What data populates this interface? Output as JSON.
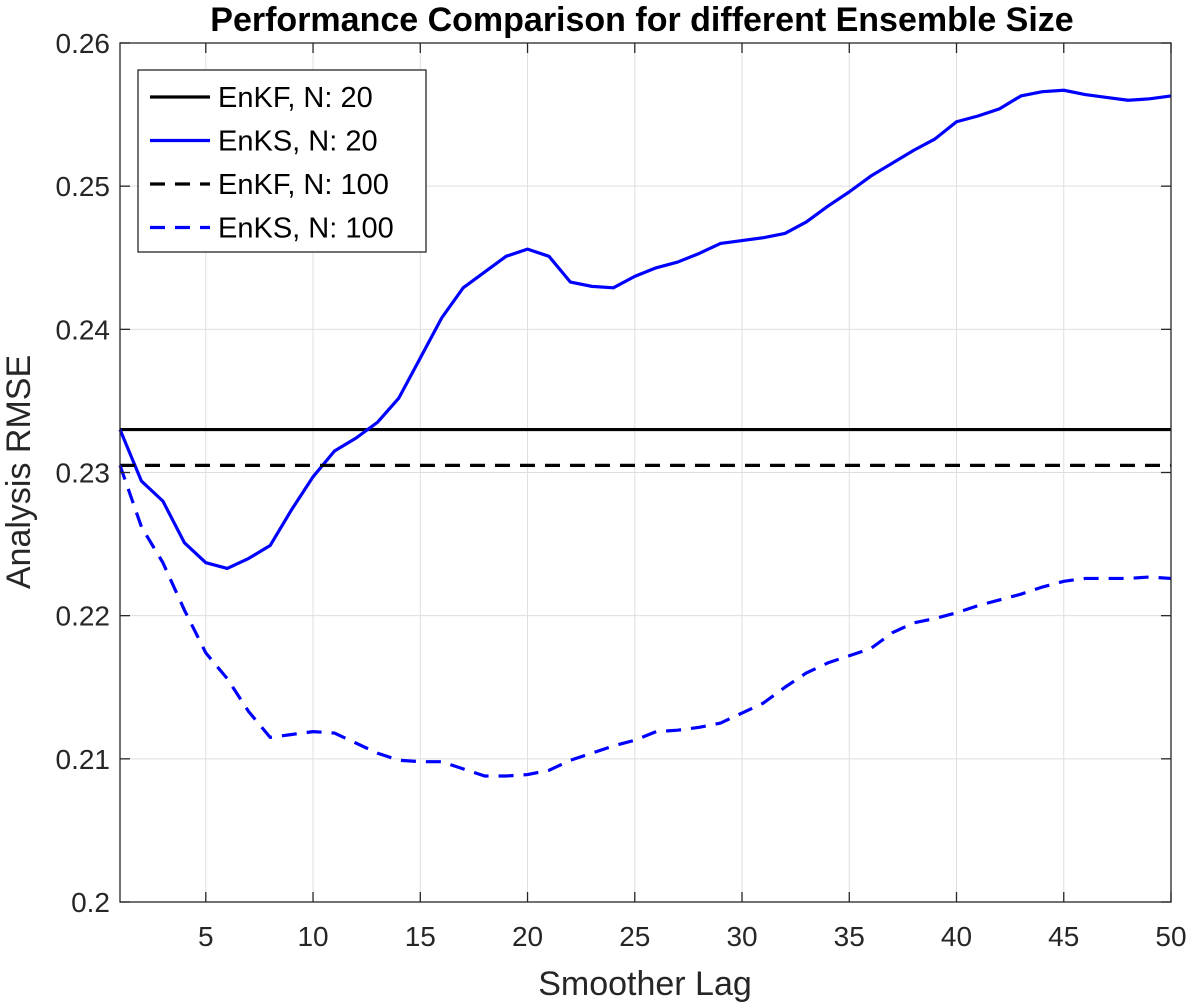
{
  "chart_data": {
    "type": "line",
    "title": "Performance Comparison for different Ensemble Size",
    "xlabel": "Smoother Lag",
    "ylabel": "Analysis RMSE",
    "xlim": [
      1,
      50
    ],
    "ylim": [
      0.2,
      0.26
    ],
    "xticks": [
      5,
      10,
      15,
      20,
      25,
      30,
      35,
      40,
      45,
      50
    ],
    "xtick_labels": [
      "5",
      "10",
      "15",
      "20",
      "25",
      "30",
      "35",
      "40",
      "45",
      "50"
    ],
    "yticks": [
      0.2,
      0.21,
      0.22,
      0.23,
      0.24,
      0.25,
      0.26
    ],
    "ytick_labels": [
      "0.2",
      "0.21",
      "0.22",
      "0.23",
      "0.24",
      "0.25",
      "0.26"
    ],
    "grid": true,
    "legend_position": "top-left",
    "x": [
      1,
      2,
      3,
      4,
      5,
      6,
      7,
      8,
      9,
      10,
      11,
      12,
      13,
      14,
      15,
      16,
      17,
      18,
      19,
      20,
      21,
      22,
      23,
      24,
      25,
      26,
      27,
      28,
      29,
      30,
      31,
      32,
      33,
      34,
      35,
      36,
      37,
      38,
      39,
      40,
      41,
      42,
      43,
      44,
      45,
      46,
      47,
      48,
      49,
      50
    ],
    "series": [
      {
        "name": "EnKF, N: 20",
        "color": "#000000",
        "dash": "solid",
        "values": [
          0.233,
          0.233,
          0.233,
          0.233,
          0.233,
          0.233,
          0.233,
          0.233,
          0.233,
          0.233,
          0.233,
          0.233,
          0.233,
          0.233,
          0.233,
          0.233,
          0.233,
          0.233,
          0.233,
          0.233,
          0.233,
          0.233,
          0.233,
          0.233,
          0.233,
          0.233,
          0.233,
          0.233,
          0.233,
          0.233,
          0.233,
          0.233,
          0.233,
          0.233,
          0.233,
          0.233,
          0.233,
          0.233,
          0.233,
          0.233,
          0.233,
          0.233,
          0.233,
          0.233,
          0.233,
          0.233,
          0.233,
          0.233,
          0.233,
          0.233
        ]
      },
      {
        "name": "EnKS, N: 20",
        "color": "#0000ff",
        "dash": "solid",
        "values": [
          0.233,
          0.2294,
          0.228,
          0.2251,
          0.2237,
          0.2233,
          0.224,
          0.2249,
          0.2274,
          0.2297,
          0.2315,
          0.2324,
          0.2335,
          0.2352,
          0.238,
          0.2408,
          0.2429,
          0.244,
          0.2451,
          0.2456,
          0.2451,
          0.2433,
          0.243,
          0.2429,
          0.2437,
          0.2443,
          0.2447,
          0.2453,
          0.246,
          0.2462,
          0.2464,
          0.2467,
          0.2475,
          0.2486,
          0.2496,
          0.2507,
          0.2516,
          0.2525,
          0.2533,
          0.2545,
          0.2549,
          0.2554,
          0.2563,
          0.2566,
          0.2567,
          0.2564,
          0.2562,
          0.256,
          0.2561,
          0.2563
        ]
      },
      {
        "name": "EnKF, N: 100",
        "color": "#000000",
        "dash": "dashed",
        "values": [
          0.2305,
          0.2305,
          0.2305,
          0.2305,
          0.2305,
          0.2305,
          0.2305,
          0.2305,
          0.2305,
          0.2305,
          0.2305,
          0.2305,
          0.2305,
          0.2305,
          0.2305,
          0.2305,
          0.2305,
          0.2305,
          0.2305,
          0.2305,
          0.2305,
          0.2305,
          0.2305,
          0.2305,
          0.2305,
          0.2305,
          0.2305,
          0.2305,
          0.2305,
          0.2305,
          0.2305,
          0.2305,
          0.2305,
          0.2305,
          0.2305,
          0.2305,
          0.2305,
          0.2305,
          0.2305,
          0.2305,
          0.2305,
          0.2305,
          0.2305,
          0.2305,
          0.2305,
          0.2305,
          0.2305,
          0.2305,
          0.2305,
          0.2305
        ]
      },
      {
        "name": "EnKS, N: 100",
        "color": "#0000ff",
        "dash": "dashed",
        "values": [
          0.2305,
          0.2262,
          0.2237,
          0.2204,
          0.2174,
          0.2156,
          0.2133,
          0.2115,
          0.2117,
          0.2119,
          0.2118,
          0.2111,
          0.2104,
          0.2099,
          0.2098,
          0.2098,
          0.2093,
          0.2088,
          0.2088,
          0.2089,
          0.2092,
          0.2099,
          0.2104,
          0.2109,
          0.2113,
          0.2119,
          0.212,
          0.2122,
          0.2125,
          0.2132,
          0.2139,
          0.215,
          0.216,
          0.2167,
          0.2172,
          0.2177,
          0.2188,
          0.2195,
          0.2198,
          0.2202,
          0.2207,
          0.2211,
          0.2215,
          0.222,
          0.2224,
          0.2226,
          0.2226,
          0.2226,
          0.2227,
          0.2226
        ]
      }
    ]
  }
}
